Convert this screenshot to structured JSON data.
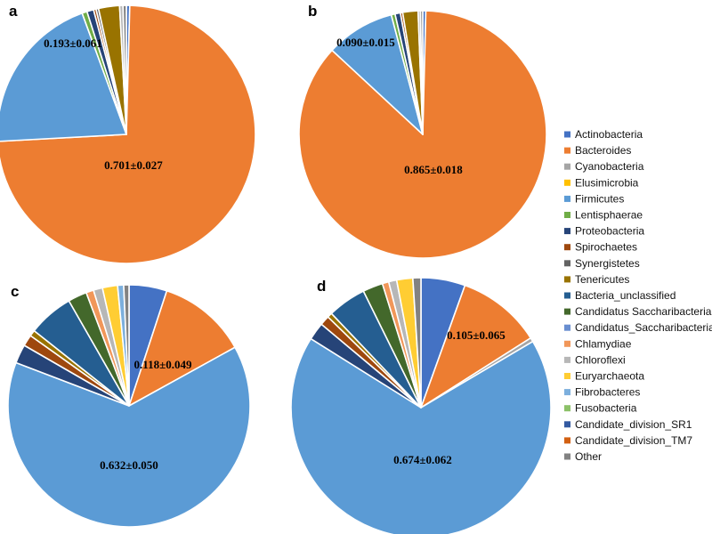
{
  "legend": [
    {
      "name": "Actinobacteria",
      "color": "#4472C4"
    },
    {
      "name": "Bacteroides",
      "color": "#ED7D31"
    },
    {
      "name": "Cyanobacteria",
      "color": "#A5A5A5"
    },
    {
      "name": "Elusimicrobia",
      "color": "#FFC000"
    },
    {
      "name": "Firmicutes",
      "color": "#5B9BD5"
    },
    {
      "name": "Lentisphaerae",
      "color": "#70AD47"
    },
    {
      "name": "Proteobacteria",
      "color": "#264478"
    },
    {
      "name": "Spirochaetes",
      "color": "#9E480E"
    },
    {
      "name": "Synergistetes",
      "color": "#636363"
    },
    {
      "name": "Tenericutes",
      "color": "#997300"
    },
    {
      "name": "Bacteria_unclassified",
      "color": "#255E91"
    },
    {
      "name": "Candidatus Saccharibacteria",
      "color": "#43682B"
    },
    {
      "name": "Candidatus_Saccharibacteria",
      "color": "#698ED0"
    },
    {
      "name": "Chlamydiae",
      "color": "#F1975A"
    },
    {
      "name": "Chloroflexi",
      "color": "#B7B7B7"
    },
    {
      "name": "Euryarchaeota",
      "color": "#FFCD33"
    },
    {
      "name": "Fibrobacteres",
      "color": "#7CAFDD"
    },
    {
      "name": "Fusobacteria",
      "color": "#8CC168"
    },
    {
      "name": "Candidate_division_SR1",
      "color": "#335AA1"
    },
    {
      "name": "Candidate_division_TM7",
      "color": "#D26012"
    },
    {
      "name": "Other",
      "color": "#828282"
    }
  ],
  "chart_data": [
    {
      "type": "pie",
      "panel": "a",
      "label": "0.701±0.027",
      "label_slice": "Bacteroides",
      "secondary_label": "0.193±0.061",
      "secondary_label_slice": "Firmicutes",
      "slices": [
        {
          "name": "Actinobacteria",
          "value": 0.004
        },
        {
          "name": "Bacteroides",
          "value": 0.701
        },
        {
          "name": "Firmicutes",
          "value": 0.193
        },
        {
          "name": "Lentisphaerae",
          "value": 0.006
        },
        {
          "name": "Proteobacteria",
          "value": 0.008
        },
        {
          "name": "Spirochaetes",
          "value": 0.003
        },
        {
          "name": "Synergistetes",
          "value": 0.003
        },
        {
          "name": "Tenericutes",
          "value": 0.025
        },
        {
          "name": "Chloroflexi",
          "value": 0.004
        },
        {
          "name": "Other",
          "value": 0.004
        }
      ]
    },
    {
      "type": "pie",
      "panel": "b",
      "label": "0.865±0.018",
      "label_slice": "Bacteroides",
      "secondary_label": "0.090±0.015",
      "secondary_label_slice": "Firmicutes",
      "slices": [
        {
          "name": "Actinobacteria",
          "value": 0.004
        },
        {
          "name": "Bacteroides",
          "value": 0.865
        },
        {
          "name": "Firmicutes",
          "value": 0.09
        },
        {
          "name": "Lentisphaerae",
          "value": 0.005
        },
        {
          "name": "Proteobacteria",
          "value": 0.007
        },
        {
          "name": "Spirochaetes",
          "value": 0.003
        },
        {
          "name": "Tenericutes",
          "value": 0.02
        },
        {
          "name": "Chloroflexi",
          "value": 0.003
        },
        {
          "name": "Other",
          "value": 0.003
        }
      ]
    },
    {
      "type": "pie",
      "panel": "c",
      "label": "0.632±0.050",
      "label_slice": "Firmicutes",
      "secondary_label": "0.118±0.049",
      "secondary_label_slice": "Bacteroides",
      "slices": [
        {
          "name": "Actinobacteria",
          "value": 0.05
        },
        {
          "name": "Bacteroides",
          "value": 0.118
        },
        {
          "name": "Firmicutes",
          "value": 0.632
        },
        {
          "name": "Proteobacteria",
          "value": 0.025
        },
        {
          "name": "Spirochaetes",
          "value": 0.015
        },
        {
          "name": "Tenericutes",
          "value": 0.008
        },
        {
          "name": "Bacteria_unclassified",
          "value": 0.06
        },
        {
          "name": "Candidatus Saccharibacteria",
          "value": 0.025
        },
        {
          "name": "Chlamydiae",
          "value": 0.01
        },
        {
          "name": "Chloroflexi",
          "value": 0.012
        },
        {
          "name": "Euryarchaeota",
          "value": 0.02
        },
        {
          "name": "Fibrobacteres",
          "value": 0.008
        },
        {
          "name": "Other",
          "value": 0.007
        }
      ]
    },
    {
      "type": "pie",
      "panel": "d",
      "label": "0.674±0.062",
      "label_slice": "Firmicutes",
      "secondary_label": "0.105±0.065",
      "secondary_label_slice": "Bacteroides",
      "slices": [
        {
          "name": "Actinobacteria",
          "value": 0.055
        },
        {
          "name": "Bacteroides",
          "value": 0.105
        },
        {
          "name": "Cyanobacteria",
          "value": 0.005
        },
        {
          "name": "Firmicutes",
          "value": 0.674
        },
        {
          "name": "Proteobacteria",
          "value": 0.022
        },
        {
          "name": "Spirochaetes",
          "value": 0.012
        },
        {
          "name": "Tenericutes",
          "value": 0.006
        },
        {
          "name": "Bacteria_unclassified",
          "value": 0.048
        },
        {
          "name": "Candidatus Saccharibacteria",
          "value": 0.025
        },
        {
          "name": "Chlamydiae",
          "value": 0.008
        },
        {
          "name": "Chloroflexi",
          "value": 0.01
        },
        {
          "name": "Euryarchaeota",
          "value": 0.02
        },
        {
          "name": "Other",
          "value": 0.01
        }
      ]
    }
  ]
}
